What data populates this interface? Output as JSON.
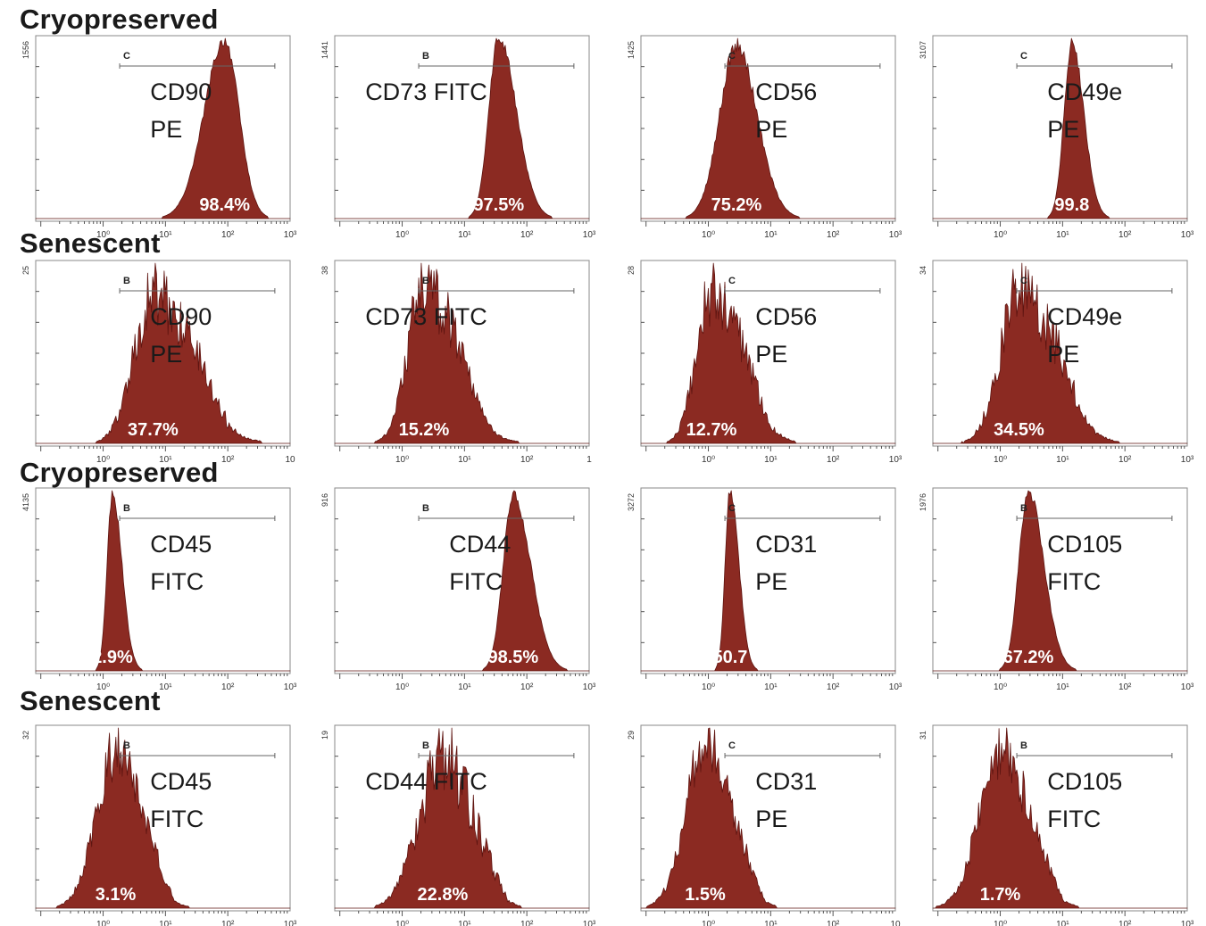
{
  "row_titles": [
    "Cryopreserved",
    "Senescent",
    "Cryopreserved",
    "Senescent"
  ],
  "colors": {
    "histogram_fill": "#8b2a22",
    "histogram_edge": "#5e1410",
    "frame": "#888888",
    "axis": "#555555",
    "text": "#1a1a1a",
    "percent_text": "#ffffff"
  },
  "chart_data": [
    {
      "type": "area",
      "chart": "histogram",
      "row": 0,
      "col": 0,
      "line1": "CD90",
      "line2": "PE",
      "percent": "98.4%",
      "gate": "C",
      "ymax": "1556",
      "xticks": [
        "10⁰",
        "10¹",
        "10²",
        "10³"
      ],
      "peak_log": 1.95,
      "spread": 0.28,
      "skew": -0.5,
      "noise": 0.02
    },
    {
      "type": "area",
      "chart": "histogram",
      "row": 0,
      "col": 1,
      "line1": "CD73 FITC",
      "line2": "",
      "percent": "97.5%",
      "gate": "B",
      "ymax": "1441",
      "xticks": [
        "10⁰",
        "10¹",
        "10²",
        "10³"
      ],
      "peak_log": 1.55,
      "spread": 0.22,
      "skew": 0.8,
      "noise": 0.02
    },
    {
      "type": "area",
      "chart": "histogram",
      "row": 0,
      "col": 2,
      "line1": "CD56",
      "line2": "PE",
      "percent": "75.2%",
      "gate": "C",
      "ymax": "1425",
      "xticks": [
        "10⁰",
        "10¹",
        "10²",
        "10³"
      ],
      "peak_log": 0.45,
      "spread": 0.3,
      "skew": 0.3,
      "noise": 0.03
    },
    {
      "type": "area",
      "chart": "histogram",
      "row": 0,
      "col": 3,
      "line1": "CD49e",
      "line2": "PE",
      "percent": "99.8",
      "gate": "C",
      "ymax": "3107",
      "xticks": [
        "10⁰",
        "10¹",
        "10²",
        "10³"
      ],
      "peak_log": 1.15,
      "spread": 0.16,
      "skew": 0.6,
      "noise": 0.02
    },
    {
      "type": "area",
      "chart": "histogram",
      "row": 1,
      "col": 0,
      "line1": "CD90",
      "line2": "PE",
      "percent": "37.7%",
      "gate": "B",
      "ymax": "25",
      "xticks": [
        "10⁰",
        "10¹",
        "10²",
        "10"
      ],
      "peak_log": 0.8,
      "spread": 0.45,
      "skew": 0.9,
      "noise": 0.14
    },
    {
      "type": "area",
      "chart": "histogram",
      "row": 1,
      "col": 1,
      "line1": "CD73 FITC",
      "line2": "",
      "percent": "15.2%",
      "gate": "B",
      "ymax": "38",
      "xticks": [
        "10⁰",
        "10¹",
        "10²",
        "1"
      ],
      "peak_log": 0.35,
      "spread": 0.38,
      "skew": 0.9,
      "noise": 0.14
    },
    {
      "type": "area",
      "chart": "histogram",
      "row": 1,
      "col": 2,
      "line1": "CD56",
      "line2": "PE",
      "percent": "12.7%",
      "gate": "C",
      "ymax": "28",
      "xticks": [
        "10⁰",
        "10¹",
        "10²",
        "10³"
      ],
      "peak_log": 0.05,
      "spread": 0.35,
      "skew": 0.9,
      "noise": 0.14
    },
    {
      "type": "area",
      "chart": "histogram",
      "row": 1,
      "col": 3,
      "line1": "CD49e",
      "line2": "PE",
      "percent": "34.5%",
      "gate": "C",
      "ymax": "34",
      "xticks": [
        "10⁰",
        "10¹",
        "10²",
        "10³"
      ],
      "peak_log": 0.3,
      "spread": 0.42,
      "skew": 0.8,
      "noise": 0.14
    },
    {
      "type": "area",
      "chart": "histogram",
      "row": 2,
      "col": 0,
      "line1": "CD45",
      "line2": "FITC",
      "percent": "2.9%",
      "gate": "B",
      "ymax": "4135",
      "xticks": [
        "10⁰",
        "10¹",
        "10²",
        "10³"
      ],
      "peak_log": 0.15,
      "spread": 0.12,
      "skew": 0.8,
      "noise": 0.02
    },
    {
      "type": "area",
      "chart": "histogram",
      "row": 2,
      "col": 1,
      "line1": "CD44",
      "line2": "FITC",
      "percent": "98.5%",
      "gate": "B",
      "ymax": "916",
      "xticks": [
        "10⁰",
        "10¹",
        "10²",
        "10³"
      ],
      "peak_log": 1.78,
      "spread": 0.22,
      "skew": 0.8,
      "noise": 0.02
    },
    {
      "type": "area",
      "chart": "histogram",
      "row": 2,
      "col": 2,
      "line1": "CD31",
      "line2": "PE",
      "percent": "50.7",
      "gate": "C",
      "ymax": "3272",
      "xticks": [
        "10⁰",
        "10¹",
        "10²",
        "10³"
      ],
      "peak_log": 0.35,
      "spread": 0.11,
      "skew": 0.8,
      "noise": 0.02
    },
    {
      "type": "area",
      "chart": "histogram",
      "row": 2,
      "col": 3,
      "line1": "CD105",
      "line2": "FITC",
      "percent": "67.2%",
      "gate": "B",
      "ymax": "1976",
      "xticks": [
        "10⁰",
        "10¹",
        "10²",
        "10³"
      ],
      "peak_log": 0.45,
      "spread": 0.2,
      "skew": 0.7,
      "noise": 0.02
    },
    {
      "type": "area",
      "chart": "histogram",
      "row": 3,
      "col": 0,
      "line1": "CD45",
      "line2": "FITC",
      "percent": "3.1%",
      "gate": "B",
      "ymax": "32",
      "xticks": [
        "10⁰",
        "10¹",
        "10²",
        "10³"
      ],
      "peak_log": 0.2,
      "spread": 0.35,
      "skew": 0.3,
      "noise": 0.12
    },
    {
      "type": "area",
      "chart": "histogram",
      "row": 3,
      "col": 1,
      "line1": "CD44 FITC",
      "line2": "",
      "percent": "22.8%",
      "gate": "B",
      "ymax": "19",
      "xticks": [
        "10⁰",
        "10¹",
        "10²",
        "10³"
      ],
      "peak_log": 0.65,
      "spread": 0.4,
      "skew": 0.2,
      "noise": 0.16
    },
    {
      "type": "area",
      "chart": "histogram",
      "row": 3,
      "col": 2,
      "line1": "CD31",
      "line2": "PE",
      "percent": "1.5%",
      "gate": "C",
      "ymax": "29",
      "xticks": [
        "10⁰",
        "10¹",
        "10²",
        "10"
      ],
      "peak_log": -0.05,
      "spread": 0.35,
      "skew": 0.3,
      "noise": 0.12
    },
    {
      "type": "area",
      "chart": "histogram",
      "row": 3,
      "col": 3,
      "line1": "CD105",
      "line2": "FITC",
      "percent": "1.7%",
      "gate": "B",
      "ymax": "31",
      "xticks": [
        "10⁰",
        "10¹",
        "10²",
        "10³"
      ],
      "peak_log": 0.0,
      "spread": 0.38,
      "skew": 0.3,
      "noise": 0.13
    }
  ]
}
